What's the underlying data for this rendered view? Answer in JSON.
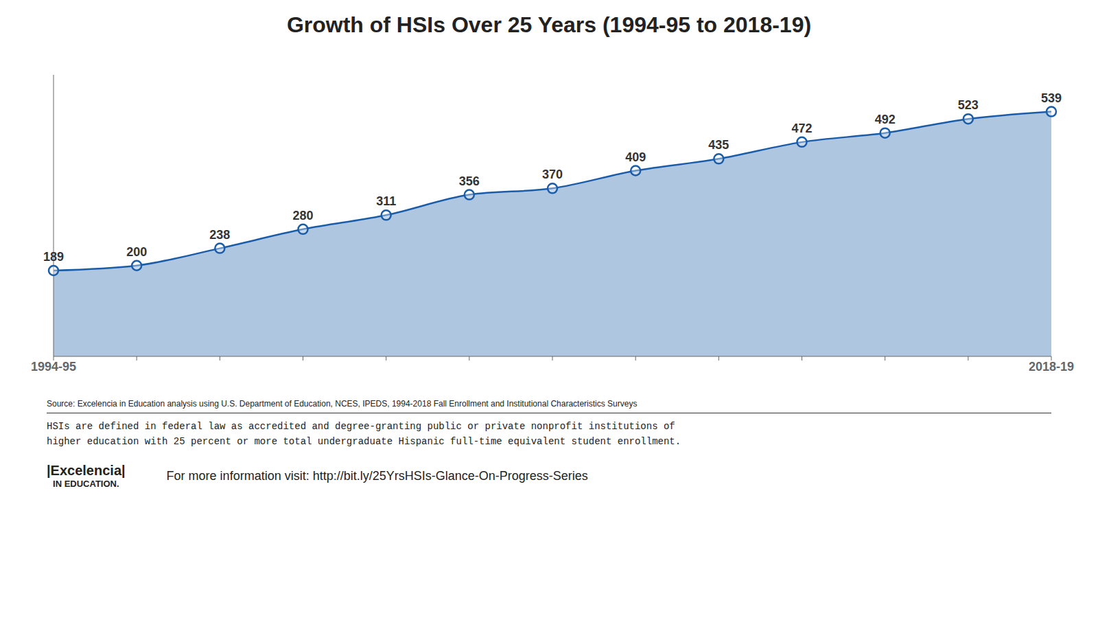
{
  "chart_data": {
    "type": "area",
    "title": "Growth of HSIs Over 25 Years (1994-95 to 2018-19)",
    "categories": [
      "1994-95",
      null,
      null,
      null,
      null,
      null,
      null,
      null,
      null,
      null,
      null,
      null,
      "2018-19"
    ],
    "values": [
      189,
      200,
      238,
      280,
      311,
      356,
      370,
      409,
      435,
      472,
      492,
      523,
      539
    ],
    "color": "#1a5ca8",
    "ylim": [
      0,
      620
    ],
    "grid": false,
    "data_labels": true,
    "tick_labels": "x",
    "marker": "circle",
    "annotations": [
      "Source: Excelencia in Education analysis using U.S. Department of Education, NCES, IPEDS, 1994-2018 Fall Enrollment and Institutional Characteristics Surveys",
      "HSIs are defined in federal law as accredited and degree-granting public or private nonprofit institutions of",
      "higher education with 25 percent or more total undergraduate Hispanic full-time equivalent student enrollment.",
      "|Excelencia|",
      "IN EDUCATION.",
      "For more information visit: http://bit.ly/25YrsHSIs-Glance-On-Progress-Series"
    ]
  }
}
